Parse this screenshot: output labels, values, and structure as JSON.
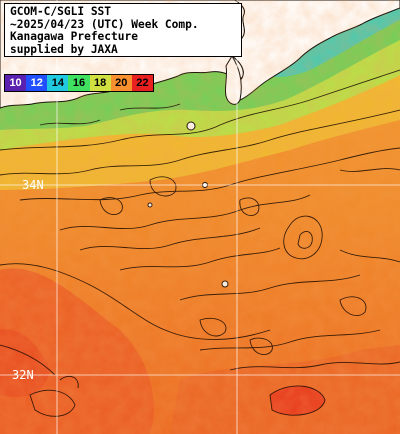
{
  "title": {
    "line1": "GCOM-C/SGLI SST",
    "line2": "~2025/04/23 (UTC) Week Comp.",
    "line3": "Kanagawa Prefecture",
    "line4": "supplied by JAXA"
  },
  "legend": [
    {
      "label": "10",
      "color": "#5a20b0",
      "text": "#ffffff"
    },
    {
      "label": "12",
      "color": "#2050ff",
      "text": "#ffffff"
    },
    {
      "label": "14",
      "color": "#20c8e0",
      "text": "#000000"
    },
    {
      "label": "16",
      "color": "#40e060",
      "text": "#000000"
    },
    {
      "label": "18",
      "color": "#d0e040",
      "text": "#000000"
    },
    {
      "label": "20",
      "color": "#f89030",
      "text": "#000000"
    },
    {
      "label": "22",
      "color": "#e82020",
      "text": "#000000"
    }
  ],
  "grid_labels": {
    "lat_34": "34N",
    "lat_32": "32N"
  }
}
